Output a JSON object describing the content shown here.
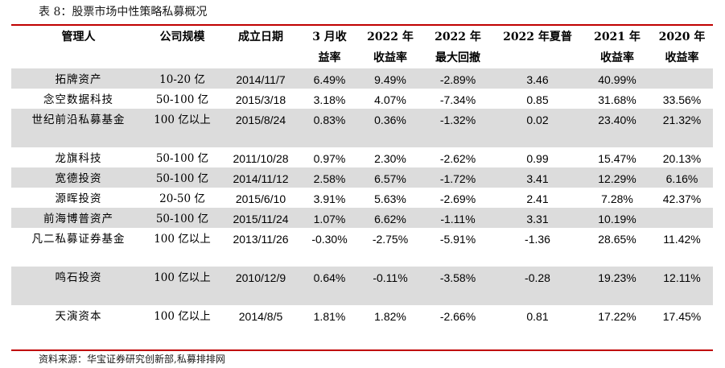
{
  "caption": "表 8：股票市场中性策略私募概况",
  "headers": [
    [
      "管理人"
    ],
    [
      "公司规模"
    ],
    [
      "成立日期"
    ],
    [
      "3 月收",
      "益率"
    ],
    [
      "2022 年",
      "收益率"
    ],
    [
      "2022 年",
      "最大回撤"
    ],
    [
      "2022 年夏普"
    ],
    [
      "2021 年",
      "收益率"
    ],
    [
      "2020 年",
      "收益率"
    ]
  ],
  "rows": [
    [
      "拓牌资产",
      "10-20 亿",
      "2014/11/7",
      "6.49%",
      "9.49%",
      "-2.89%",
      "3.46",
      "40.99%",
      ""
    ],
    [
      "念空数据科技",
      "50-100 亿",
      "2015/3/18",
      "3.18%",
      "4.07%",
      "-7.34%",
      "0.85",
      "31.68%",
      "33.56%"
    ],
    [
      "世纪前沿私募基金",
      "100 亿以上",
      "2015/8/24",
      "0.83%",
      "0.36%",
      "-1.32%",
      "0.02",
      "23.40%",
      "21.32%"
    ],
    [
      "龙旗科技",
      "50-100 亿",
      "2011/10/28",
      "0.97%",
      "2.30%",
      "-2.62%",
      "0.99",
      "15.47%",
      "20.13%"
    ],
    [
      "宽德投资",
      "50-100 亿",
      "2014/11/12",
      "2.58%",
      "6.57%",
      "-1.72%",
      "3.41",
      "12.29%",
      "6.16%"
    ],
    [
      "源晖投资",
      "20-50 亿",
      "2015/6/10",
      "3.91%",
      "5.63%",
      "-2.69%",
      "2.41",
      "7.28%",
      "42.37%"
    ],
    [
      "前海博普资产",
      "50-100 亿",
      "2015/11/24",
      "1.07%",
      "6.62%",
      "-1.11%",
      "3.31",
      "10.19%",
      ""
    ],
    [
      "凡二私募证券基金",
      "100 亿以上",
      "2013/11/26",
      "-0.30%",
      "-2.75%",
      "-5.91%",
      "-1.36",
      "28.65%",
      "11.42%"
    ],
    [
      "鸣石投资",
      "100 亿以上",
      "2010/12/9",
      "0.64%",
      "-0.11%",
      "-3.58%",
      "-0.28",
      "19.23%",
      "12.11%"
    ],
    [
      "天演资本",
      "100 亿以上",
      "2014/8/5",
      "1.81%",
      "1.82%",
      "-2.66%",
      "0.81",
      "17.22%",
      "17.45%"
    ]
  ],
  "source": "资料来源：华宝证券研究创新部,私募排排网",
  "colors": {
    "accent_rule": "#c00000",
    "row_shade": "#dcdcdc"
  }
}
